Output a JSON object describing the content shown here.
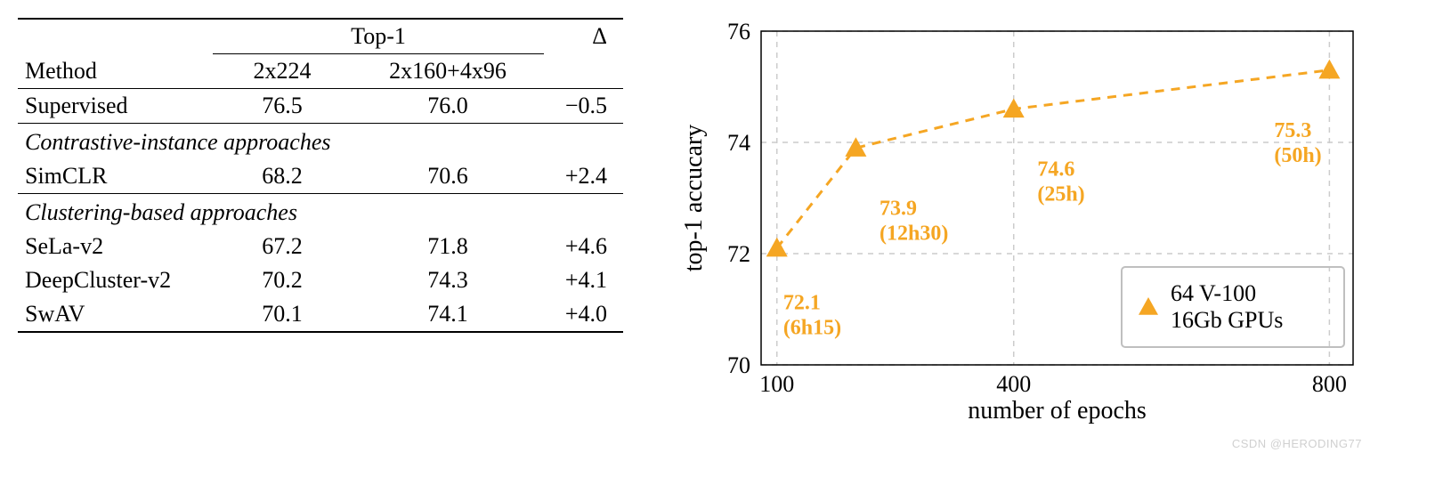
{
  "table": {
    "header": {
      "method": "Method",
      "top1": "Top-1",
      "col_a": "2x224",
      "col_b": "2x160+4x96",
      "delta": "Δ"
    },
    "rows": {
      "supervised": {
        "name": "Supervised",
        "a": "76.5",
        "b": "76.0",
        "d": "−0.5"
      }
    },
    "section_contrastive": {
      "label": "Contrastive-instance approaches",
      "rows": {
        "simclr": {
          "name": "SimCLR",
          "a": "68.2",
          "b": "70.6",
          "d": "+2.4"
        }
      }
    },
    "section_clustering": {
      "label": "Clustering-based approaches",
      "rows": {
        "sela": {
          "name": "SeLa-v2",
          "a": "67.2",
          "b": "71.8",
          "d": "+4.6"
        },
        "deepcluster": {
          "name": "DeepCluster-v2",
          "a": "70.2",
          "b": "74.3",
          "d": "+4.1"
        },
        "swav": {
          "name": "SwAV",
          "a": "70.1",
          "b": "74.1",
          "d": "+4.0"
        }
      }
    }
  },
  "chart": {
    "type": "line",
    "xlabel": "number of epochs",
    "ylabel": "top-1 accucary",
    "xlim": [
      80,
      830
    ],
    "ylim": [
      70,
      76
    ],
    "xticks": [
      100,
      400,
      800
    ],
    "yticks": [
      70,
      72,
      74,
      76
    ],
    "series_color": "#f5a623",
    "line_dash": "10 8",
    "line_width": 3,
    "marker": "triangle",
    "marker_size": 12,
    "grid_color": "#cccccc",
    "grid_dash": "6 6",
    "background_color": "#ffffff",
    "points": [
      {
        "x": 100,
        "y": 72.1,
        "label_top": "72.1",
        "label_bot": "(6h15)",
        "lx": 108,
        "ly": 71.0
      },
      {
        "x": 200,
        "y": 73.9,
        "label_top": "73.9",
        "label_bot": "(12h30)",
        "lx": 230,
        "ly": 72.7
      },
      {
        "x": 400,
        "y": 74.6,
        "label_top": "74.6",
        "label_bot": "(25h)",
        "lx": 430,
        "ly": 73.4
      },
      {
        "x": 800,
        "y": 75.3,
        "label_top": "75.3",
        "label_bot": "(50h)",
        "lx": 730,
        "ly": 74.1
      }
    ],
    "legend": {
      "marker_color": "#f5a623",
      "line1": "64 V-100",
      "line2": "16Gb GPUs"
    }
  },
  "watermark": "CSDN @HERODING77"
}
